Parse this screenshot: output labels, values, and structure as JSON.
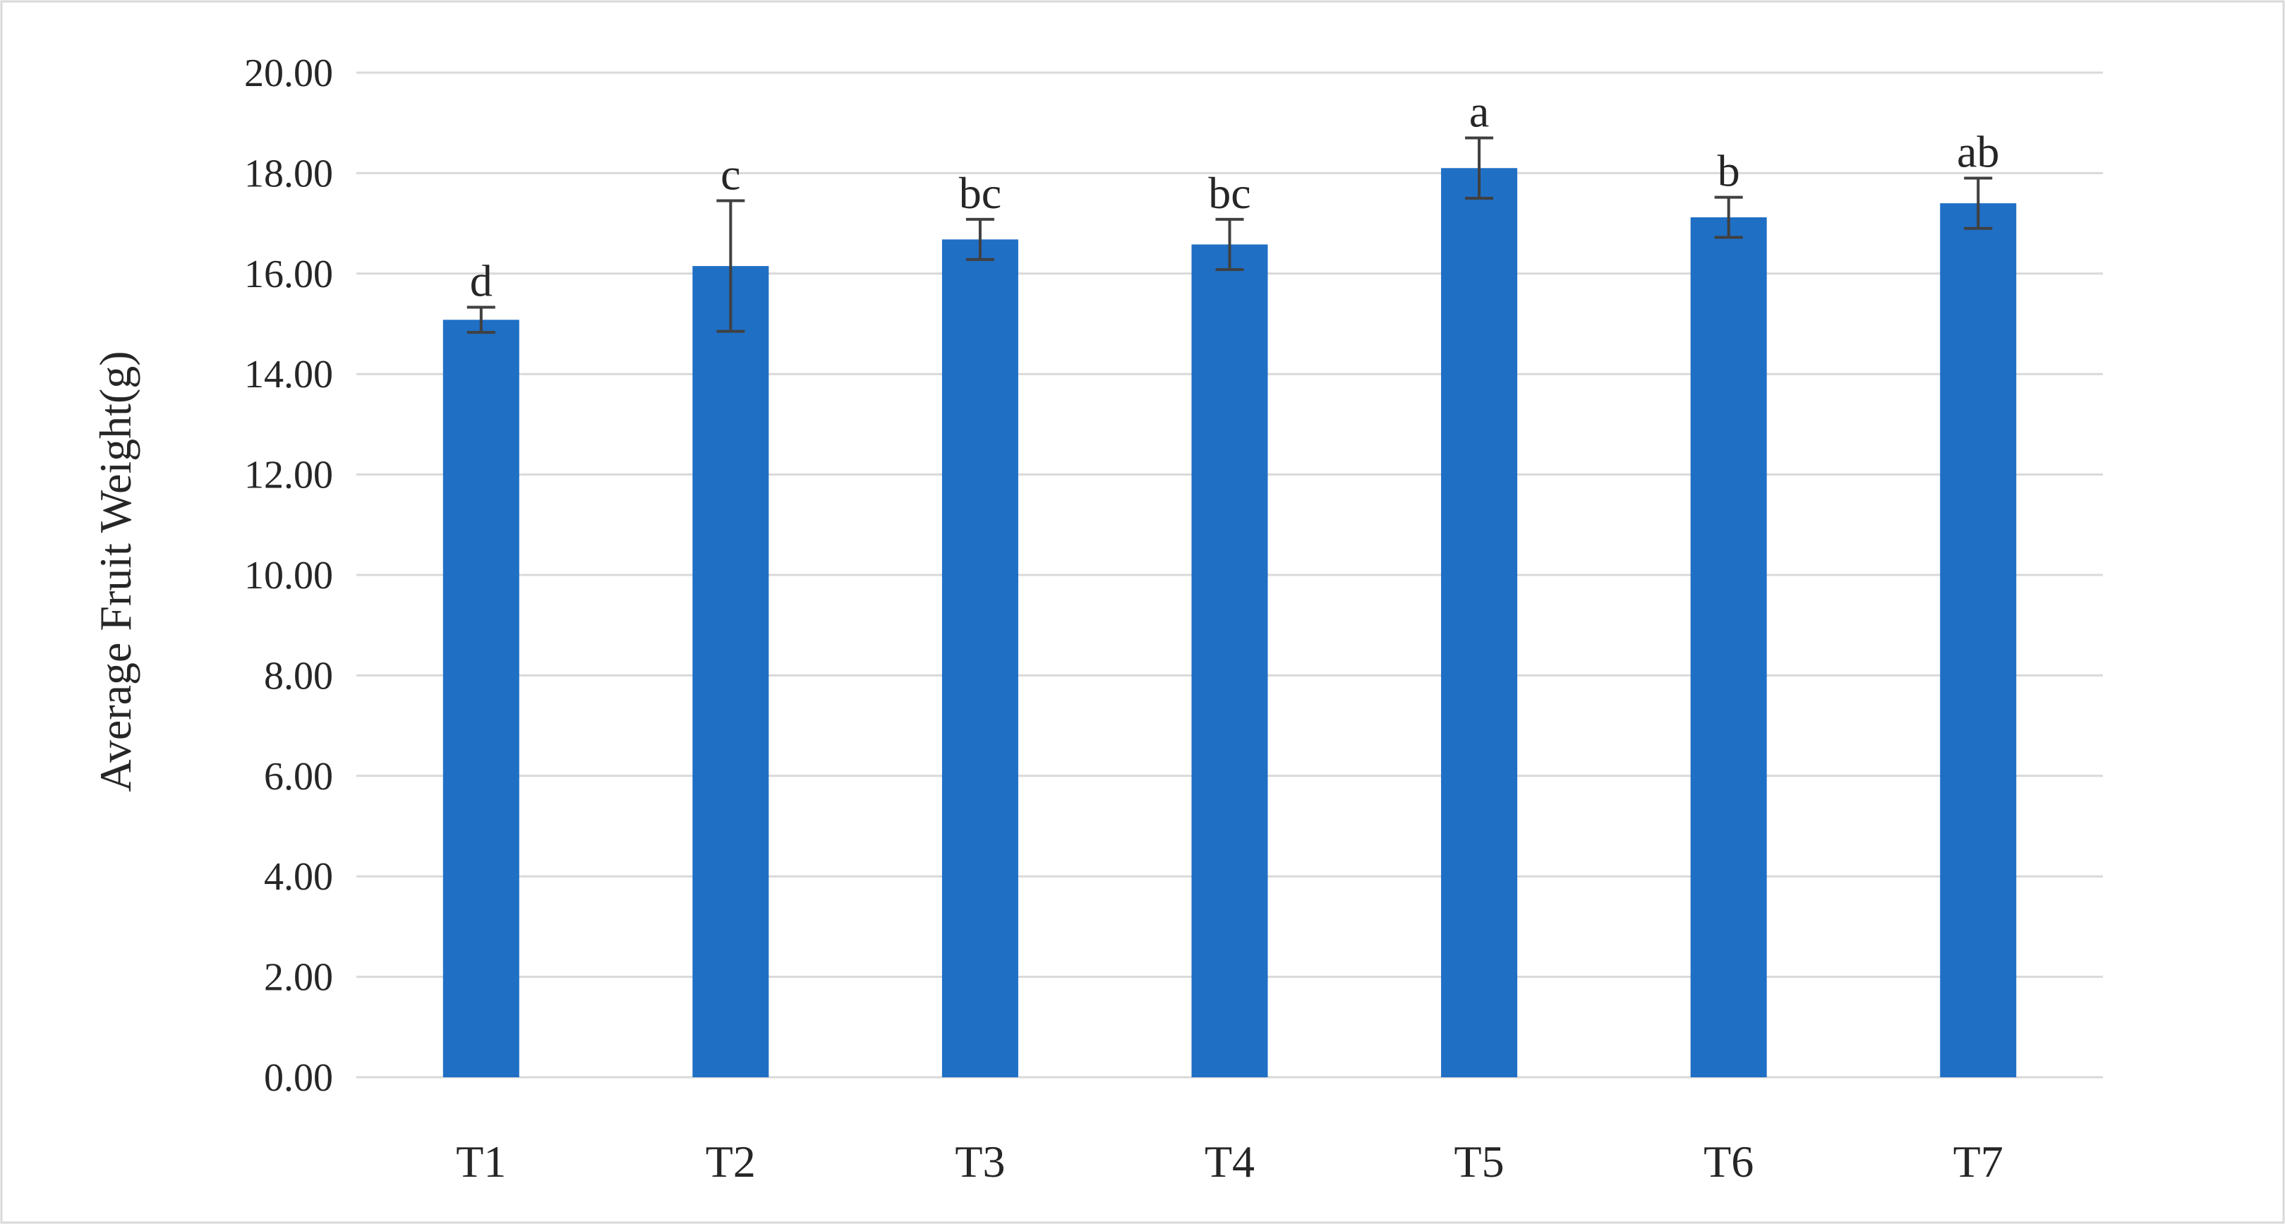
{
  "chart_data": {
    "type": "bar",
    "ylabel": "Average Fruit Weight(g)",
    "xlabel": "",
    "ylim": [
      0,
      20
    ],
    "yticks": [
      "0.00",
      "2.00",
      "4.00",
      "6.00",
      "8.00",
      "10.00",
      "12.00",
      "14.00",
      "16.00",
      "18.00",
      "20.00"
    ],
    "grid": true,
    "categories": [
      "T1",
      "T2",
      "T3",
      "T4",
      "T5",
      "T6",
      "T7"
    ],
    "values": [
      15.08,
      16.15,
      16.68,
      16.58,
      18.1,
      17.12,
      17.4
    ],
    "errors": [
      0.25,
      1.3,
      0.4,
      0.5,
      0.6,
      0.4,
      0.5
    ],
    "significance_labels": [
      "d",
      "c",
      "bc",
      "bc",
      "a",
      "b",
      "ab"
    ],
    "bar_color": "#1f6fc5"
  }
}
